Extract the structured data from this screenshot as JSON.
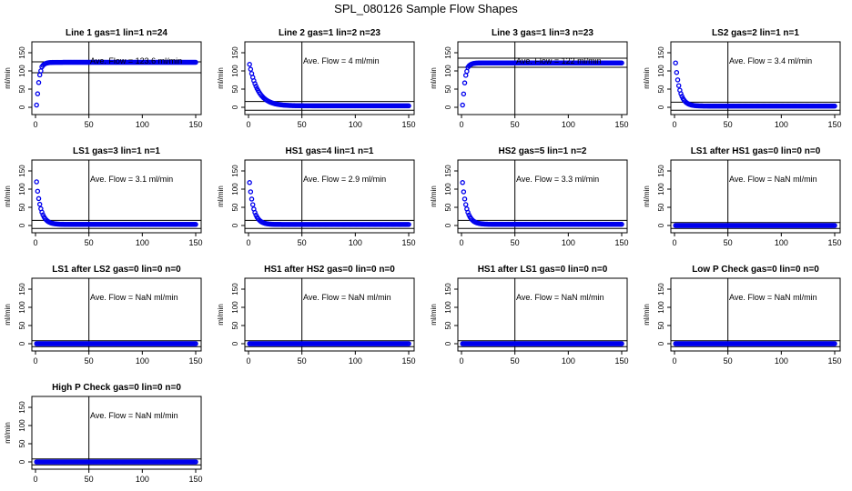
{
  "title": "SPL_080126  Sample Flow Shapes",
  "colors": {
    "points": "#0000ee",
    "axis": "#000000",
    "background": "#ffffff"
  },
  "chart_data": [
    {
      "type": "scatter",
      "title": "Line 1 gas=1 lin=1 n=24",
      "ylabel": "ml/min",
      "annotation_label": "Ave. Flow =",
      "annotation_value": "123.6",
      "annotation_unit": "ml/min",
      "shape": "rise",
      "ave": 123.6,
      "band": [
        95,
        125
      ],
      "xlim": [
        0,
        150
      ],
      "ylim": [
        -20,
        180
      ],
      "xticks": [
        "0",
        "50",
        "100",
        "150"
      ],
      "yticks": [
        "0",
        "50",
        "100",
        "150"
      ],
      "vline": 50
    },
    {
      "type": "scatter",
      "title": "Line 2 gas=1 lin=2 n=23",
      "ylabel": "ml/min",
      "annotation_label": "Ave. Flow =",
      "annotation_value": "4",
      "annotation_unit": "ml/min",
      "shape": "decay",
      "start": 118,
      "tau": 8,
      "ave": 4,
      "band": [
        -8,
        16
      ],
      "xlim": [
        0,
        150
      ],
      "ylim": [
        -20,
        180
      ],
      "xticks": [
        "0",
        "50",
        "100",
        "150"
      ],
      "yticks": [
        "0",
        "50",
        "100",
        "150"
      ],
      "vline": 50
    },
    {
      "type": "scatter",
      "title": "Line 3 gas=1 lin=3 n=23",
      "ylabel": "ml/min",
      "annotation_label": "Ave. Flow =",
      "annotation_value": "122",
      "annotation_unit": "ml/min",
      "shape": "rise",
      "ave": 122,
      "band": [
        110,
        135
      ],
      "xlim": [
        0,
        150
      ],
      "ylim": [
        -20,
        180
      ],
      "xticks": [
        "0",
        "50",
        "100",
        "150"
      ],
      "yticks": [
        "0",
        "50",
        "100",
        "150"
      ],
      "vline": 50
    },
    {
      "type": "scatter",
      "title": "LS2 gas=2 lin=1 n=1",
      "ylabel": "ml/min",
      "annotation_label": "Ave. Flow =",
      "annotation_value": "3.4",
      "annotation_unit": "ml/min",
      "shape": "decay",
      "start": 122,
      "tau": 4,
      "ave": 3.4,
      "band": [
        -8,
        14
      ],
      "xlim": [
        0,
        150
      ],
      "ylim": [
        -20,
        180
      ],
      "xticks": [
        "0",
        "50",
        "100",
        "150"
      ],
      "yticks": [
        "0",
        "50",
        "100",
        "150"
      ],
      "vline": 50
    },
    {
      "type": "scatter",
      "title": "LS1 gas=3 lin=1 n=1",
      "ylabel": "ml/min",
      "annotation_label": "Ave. Flow =",
      "annotation_value": "3.1",
      "annotation_unit": "ml/min",
      "shape": "decay",
      "start": 120,
      "tau": 4,
      "ave": 3.1,
      "band": [
        -8,
        14
      ],
      "xlim": [
        0,
        150
      ],
      "ylim": [
        -20,
        180
      ],
      "xticks": [
        "0",
        "50",
        "100",
        "150"
      ],
      "yticks": [
        "0",
        "50",
        "100",
        "150"
      ],
      "vline": 50
    },
    {
      "type": "scatter",
      "title": "HS1 gas=4 lin=1 n=1",
      "ylabel": "ml/min",
      "annotation_label": "Ave. Flow =",
      "annotation_value": "2.9",
      "annotation_unit": "ml/min",
      "shape": "decay",
      "start": 118,
      "tau": 4,
      "ave": 2.9,
      "band": [
        -8,
        14
      ],
      "xlim": [
        0,
        150
      ],
      "ylim": [
        -20,
        180
      ],
      "xticks": [
        "0",
        "50",
        "100",
        "150"
      ],
      "yticks": [
        "0",
        "50",
        "100",
        "150"
      ],
      "vline": 50
    },
    {
      "type": "scatter",
      "title": "HS2 gas=5 lin=1 n=2",
      "ylabel": "ml/min",
      "annotation_label": "Ave. Flow =",
      "annotation_value": "3.3",
      "annotation_unit": "ml/min",
      "shape": "decay",
      "start": 118,
      "tau": 4,
      "ave": 3.3,
      "band": [
        -8,
        14
      ],
      "xlim": [
        0,
        150
      ],
      "ylim": [
        -20,
        180
      ],
      "xticks": [
        "0",
        "50",
        "100",
        "150"
      ],
      "yticks": [
        "0",
        "50",
        "100",
        "150"
      ],
      "vline": 50
    },
    {
      "type": "scatter",
      "title": "LS1 after HS1 gas=0 lin=0 n=0",
      "ylabel": "ml/min",
      "annotation_label": "Ave. Flow =",
      "annotation_value": "NaN",
      "annotation_unit": "ml/min",
      "shape": "flat",
      "ave": 0,
      "band": [
        -8,
        8
      ],
      "xlim": [
        0,
        150
      ],
      "ylim": [
        -20,
        180
      ],
      "xticks": [
        "0",
        "50",
        "100",
        "150"
      ],
      "yticks": [
        "0",
        "50",
        "100",
        "150"
      ],
      "vline": 50
    },
    {
      "type": "scatter",
      "title": "LS1 after LS2 gas=0 lin=0 n=0",
      "ylabel": "ml/min",
      "annotation_label": "Ave. Flow =",
      "annotation_value": "NaN",
      "annotation_unit": "ml/min",
      "shape": "flat",
      "ave": 0,
      "band": [
        -8,
        8
      ],
      "xlim": [
        0,
        150
      ],
      "ylim": [
        -20,
        180
      ],
      "xticks": [
        "0",
        "50",
        "100",
        "150"
      ],
      "yticks": [
        "0",
        "50",
        "100",
        "150"
      ],
      "vline": 50
    },
    {
      "type": "scatter",
      "title": "HS1 after HS2 gas=0 lin=0 n=0",
      "ylabel": "ml/min",
      "annotation_label": "Ave. Flow =",
      "annotation_value": "NaN",
      "annotation_unit": "ml/min",
      "shape": "flat",
      "ave": 0,
      "band": [
        -8,
        8
      ],
      "xlim": [
        0,
        150
      ],
      "ylim": [
        -20,
        180
      ],
      "xticks": [
        "0",
        "50",
        "100",
        "150"
      ],
      "yticks": [
        "0",
        "50",
        "100",
        "150"
      ],
      "vline": 50
    },
    {
      "type": "scatter",
      "title": "HS1 after LS1 gas=0 lin=0 n=0",
      "ylabel": "ml/min",
      "annotation_label": "Ave. Flow =",
      "annotation_value": "NaN",
      "annotation_unit": "ml/min",
      "shape": "flat",
      "ave": 0,
      "band": [
        -8,
        8
      ],
      "xlim": [
        0,
        150
      ],
      "ylim": [
        -20,
        180
      ],
      "xticks": [
        "0",
        "50",
        "100",
        "150"
      ],
      "yticks": [
        "0",
        "50",
        "100",
        "150"
      ],
      "vline": 50
    },
    {
      "type": "scatter",
      "title": "Low P Check gas=0 lin=0 n=0",
      "ylabel": "ml/min",
      "annotation_label": "Ave. Flow =",
      "annotation_value": "NaN",
      "annotation_unit": "ml/min",
      "shape": "flat",
      "ave": 0,
      "band": [
        -8,
        8
      ],
      "xlim": [
        0,
        150
      ],
      "ylim": [
        -20,
        180
      ],
      "xticks": [
        "0",
        "50",
        "100",
        "150"
      ],
      "yticks": [
        "0",
        "50",
        "100",
        "150"
      ],
      "vline": 50
    },
    {
      "type": "scatter",
      "title": "High P Check gas=0 lin=0 n=0",
      "ylabel": "ml/min",
      "annotation_label": "Ave. Flow =",
      "annotation_value": "NaN",
      "annotation_unit": "ml/min",
      "shape": "flat",
      "ave": 0,
      "band": [
        -8,
        8
      ],
      "xlim": [
        0,
        150
      ],
      "ylim": [
        -20,
        180
      ],
      "xticks": [
        "0",
        "50",
        "100",
        "150"
      ],
      "yticks": [
        "0",
        "50",
        "100",
        "150"
      ],
      "vline": 50
    }
  ]
}
